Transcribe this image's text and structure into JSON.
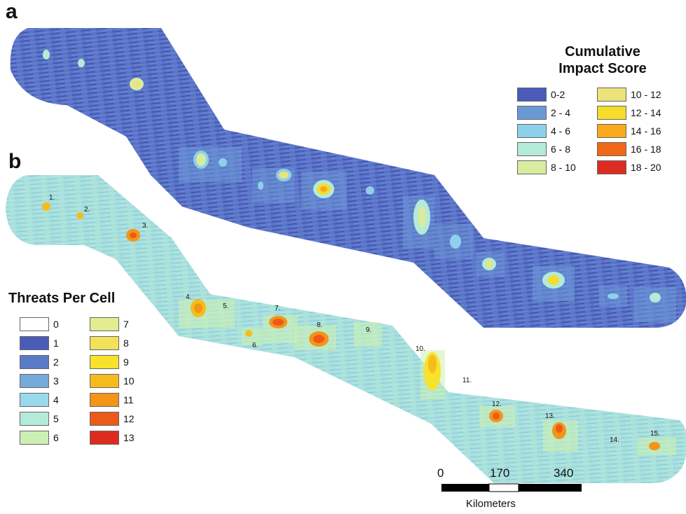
{
  "panels": {
    "a": "a",
    "b": "b"
  },
  "impact_legend": {
    "title_line1": "Cumulative",
    "title_line2": "Impact Score",
    "items": [
      {
        "label": "0-2",
        "color": "#4a5cb8"
      },
      {
        "label": "2 - 4",
        "color": "#6a9ad6"
      },
      {
        "label": "4 - 6",
        "color": "#8ed0ea"
      },
      {
        "label": "6 - 8",
        "color": "#b4ead8"
      },
      {
        "label": "8 - 10",
        "color": "#d8eca0"
      },
      {
        "label": "10 - 12",
        "color": "#ece27a"
      },
      {
        "label": "12 - 14",
        "color": "#f6dc2c"
      },
      {
        "label": "14 - 16",
        "color": "#f6aa1c"
      },
      {
        "label": "16 - 18",
        "color": "#ee6818"
      },
      {
        "label": "18 - 20",
        "color": "#dc2c20"
      }
    ]
  },
  "threats_legend": {
    "title": "Threats Per Cell",
    "items": [
      {
        "label": "0",
        "color": "#ffffff"
      },
      {
        "label": "1",
        "color": "#4a5cb8"
      },
      {
        "label": "2",
        "color": "#5a7cc8"
      },
      {
        "label": "3",
        "color": "#76aadc"
      },
      {
        "label": "4",
        "color": "#9ad8ec"
      },
      {
        "label": "5",
        "color": "#b4ead8"
      },
      {
        "label": "6",
        "color": "#ccf0b4"
      },
      {
        "label": "7",
        "color": "#e4ec90"
      },
      {
        "label": "8",
        "color": "#f2e25a"
      },
      {
        "label": "9",
        "color": "#f8e22a"
      },
      {
        "label": "10",
        "color": "#f6bc1c"
      },
      {
        "label": "11",
        "color": "#f49418"
      },
      {
        "label": "12",
        "color": "#ec5a18"
      },
      {
        "label": "13",
        "color": "#dc2c20"
      }
    ]
  },
  "hotspot_labels": [
    "1.",
    "2.",
    "3.",
    "4.",
    "5.",
    "6.",
    "7.",
    "8.",
    "9.",
    "10.",
    "11.",
    "12.",
    "13.",
    "14.",
    "15."
  ],
  "scale_bar": {
    "ticks": [
      "0",
      "170",
      "340"
    ],
    "unit": "Kilometers"
  }
}
